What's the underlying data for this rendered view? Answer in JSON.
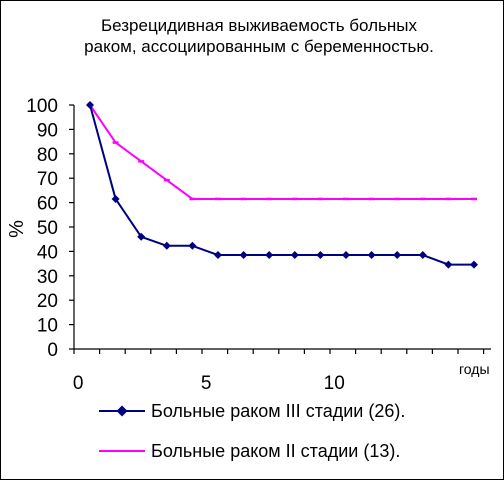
{
  "chart_data": {
    "type": "line",
    "title": [
      "Безрецидивная выживаемость больных",
      "раком, ассоциированным с беременностью."
    ],
    "ylabel": "%",
    "xlabel": "годы",
    "xlim": [
      0,
      15.5
    ],
    "ylim": [
      0,
      100
    ],
    "x_ticks": [
      0,
      5,
      10
    ],
    "y_ticks": [
      0,
      10,
      20,
      30,
      40,
      50,
      60,
      70,
      80,
      90,
      100
    ],
    "grid": false,
    "legend_position": "bottom",
    "series": [
      {
        "name": "Больные раком III стадии (26).",
        "color": "#000080",
        "marker": "diamond",
        "x": [
          0,
          1,
          2,
          3,
          4,
          5,
          6,
          7,
          8,
          9,
          10,
          11,
          12,
          13,
          14,
          15
        ],
        "y": [
          100,
          61.5,
          46,
          42.3,
          42.3,
          38.5,
          38.5,
          38.5,
          38.5,
          38.5,
          38.5,
          38.5,
          38.5,
          38.5,
          34.6,
          34.6
        ]
      },
      {
        "name": "Больные раком II стадии (13).",
        "color": "#ff00ff",
        "marker": "tick",
        "x": [
          0,
          1,
          2,
          3,
          4,
          5,
          6,
          7,
          8,
          9,
          10,
          11,
          12,
          13,
          14,
          15
        ],
        "y": [
          100,
          84.6,
          76.9,
          69.2,
          61.5,
          61.5,
          61.5,
          61.5,
          61.5,
          61.5,
          61.5,
          61.5,
          61.5,
          61.5,
          61.5,
          61.5
        ]
      }
    ]
  }
}
